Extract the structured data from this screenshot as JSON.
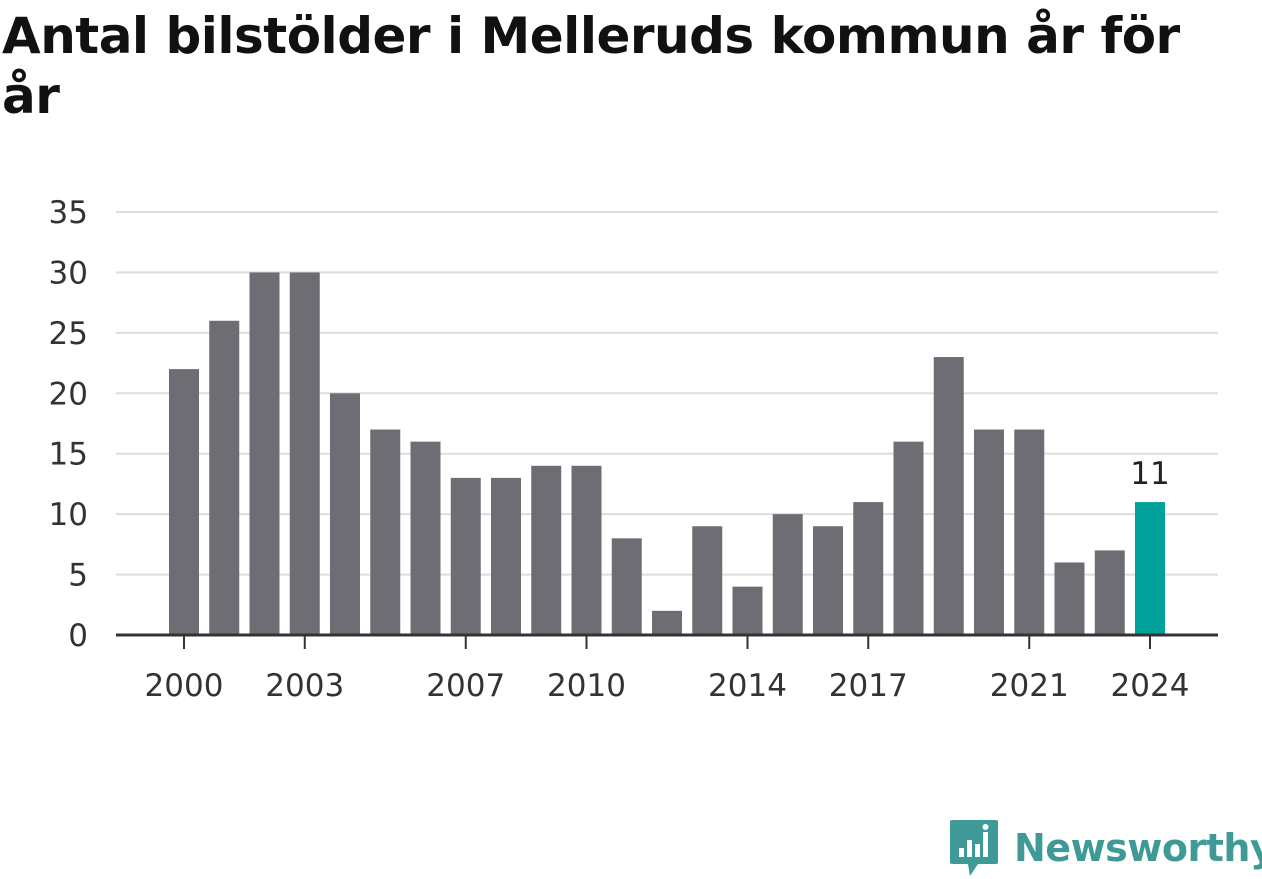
{
  "chart_data": {
    "type": "bar",
    "title": "Antal bilstölder i Melleruds kommun år för år",
    "categories": [
      2000,
      2001,
      2002,
      2003,
      2004,
      2005,
      2006,
      2007,
      2008,
      2009,
      2010,
      2011,
      2012,
      2013,
      2014,
      2015,
      2016,
      2017,
      2018,
      2019,
      2020,
      2021,
      2022,
      2023,
      2024
    ],
    "values": [
      22,
      26,
      30,
      30,
      20,
      17,
      16,
      13,
      13,
      14,
      14,
      8,
      2,
      9,
      4,
      10,
      9,
      11,
      16,
      23,
      17,
      17,
      6,
      7,
      11
    ],
    "x_tick_labels": [
      "2000",
      "2003",
      "2007",
      "2010",
      "2014",
      "2017",
      "2021",
      "2024"
    ],
    "y_ticks": [
      0,
      5,
      10,
      15,
      20,
      25,
      30,
      35
    ],
    "ylim": [
      0,
      35
    ],
    "grid": true,
    "highlight": {
      "category": 2024,
      "label": "11"
    },
    "colors": {
      "bar": "#6e6d73",
      "highlight": "#00a19a",
      "grid": "#dddddd",
      "axis": "#333333"
    }
  },
  "brand": {
    "name": "Newsworthy",
    "logo_icon": "newsworthy-chart-bubble-icon",
    "color": "#3f9a97"
  }
}
